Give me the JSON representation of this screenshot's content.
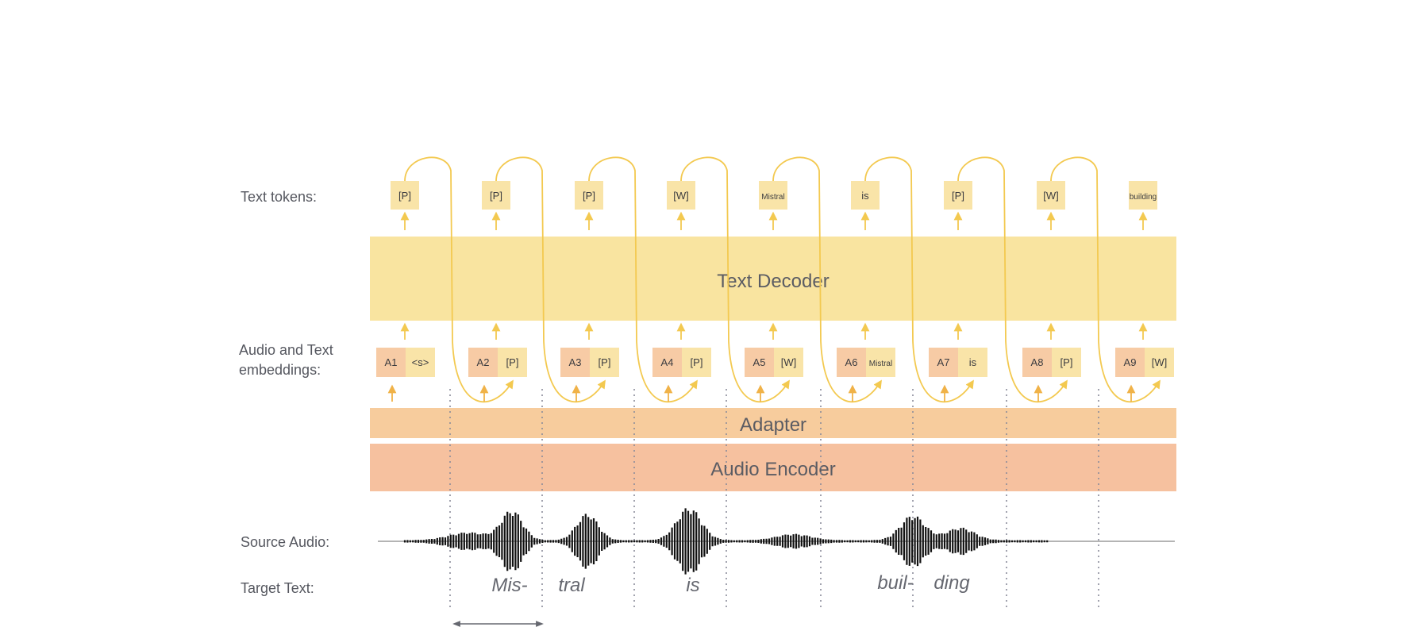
{
  "labels": {
    "text_tokens": "Text tokens:",
    "embeddings_line1": "Audio and Text",
    "embeddings_line2": "embeddings:",
    "source_audio": "Source Audio:",
    "target_text": "Target Text:"
  },
  "blocks": {
    "text_decoder": "Text Decoder",
    "adapter": "Adapter",
    "audio_encoder": "Audio Encoder"
  },
  "text_tokens": [
    "[P]",
    "[P]",
    "[P]",
    "[W]",
    "Mistral",
    "is",
    "[P]",
    "[W]",
    "building"
  ],
  "embeddings": [
    {
      "audio": "A1",
      "text": "<s>"
    },
    {
      "audio": "A2",
      "text": "[P]"
    },
    {
      "audio": "A3",
      "text": "[P]"
    },
    {
      "audio": "A4",
      "text": "[P]"
    },
    {
      "audio": "A5",
      "text": "[W]"
    },
    {
      "audio": "A6",
      "text": "Mistral"
    },
    {
      "audio": "A7",
      "text": "is"
    },
    {
      "audio": "A8",
      "text": "[P]"
    },
    {
      "audio": "A9",
      "text": "[W]"
    }
  ],
  "target_text": [
    "Mis-",
    "tral",
    "is",
    "buil-",
    "ding"
  ],
  "colors": {
    "decoder": "#f9e4a0",
    "adapter": "#f7cc9d",
    "encoder": "#f6c19f",
    "token_box": "#f9e4a8",
    "audio_box": "#f7cba5",
    "arrow": "#f3c950",
    "arrow_bottom": "#f0b248",
    "divider": "#8a8c9a",
    "waveform": "#111111"
  }
}
